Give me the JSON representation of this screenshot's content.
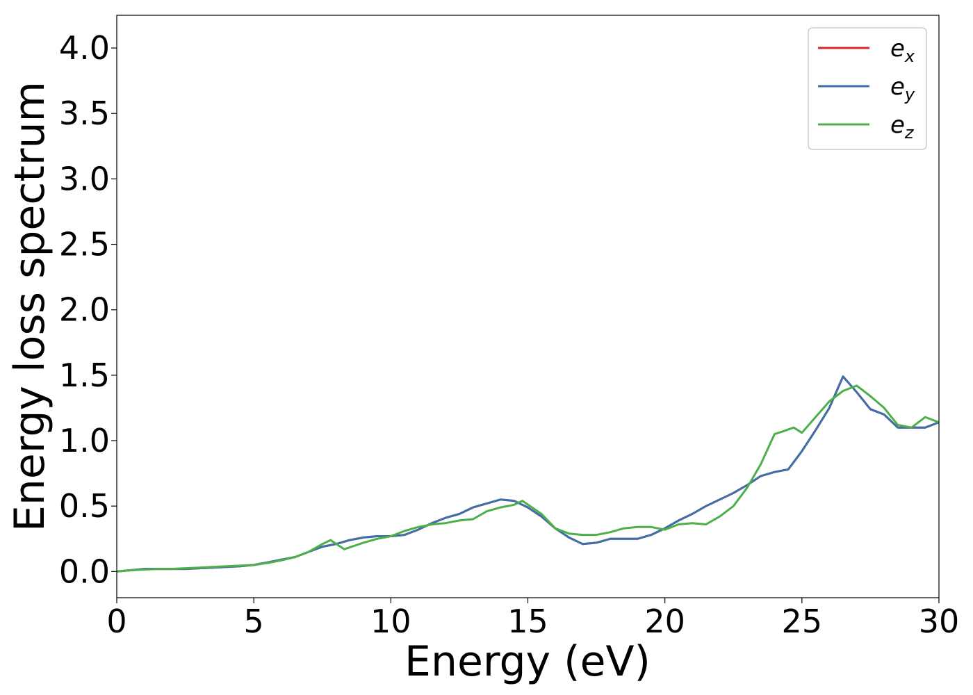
{
  "chart_data": {
    "type": "line",
    "title": "",
    "xlabel": "Energy (eV)",
    "ylabel": "Energy loss spectrum",
    "xlim": [
      0,
      30
    ],
    "ylim": [
      -0.2,
      4.25
    ],
    "xticks": [
      "0",
      "5",
      "10",
      "15",
      "20",
      "25",
      "30"
    ],
    "yticks": [
      "0.0",
      "0.5",
      "1.0",
      "1.5",
      "2.0",
      "2.5",
      "3.0",
      "3.5",
      "4.0"
    ],
    "grid": false,
    "legend_position": "top-right",
    "series": [
      {
        "name": "e",
        "subscript": "x",
        "color": "#d62728",
        "x": [
          0,
          0.5,
          1,
          1.5,
          2,
          2.5,
          3,
          3.5,
          4,
          4.5,
          5,
          5.5,
          6,
          6.5,
          7,
          7.5,
          8,
          8.5,
          9,
          9.5,
          10,
          10.5,
          11,
          11.5,
          12,
          12.5,
          13,
          13.5,
          14,
          14.5,
          15,
          15.5,
          16,
          16.5,
          17,
          17.5,
          18,
          18.5,
          19,
          19.5,
          20,
          20.5,
          21,
          21.5,
          22,
          22.5,
          23,
          23.5,
          24,
          24.5,
          25,
          25.5,
          26,
          26.5,
          27,
          27.5,
          28,
          28.5,
          29,
          29.5,
          30
        ],
        "y": [
          0.0,
          0.01,
          0.02,
          0.02,
          0.02,
          0.02,
          0.025,
          0.03,
          0.035,
          0.04,
          0.05,
          0.07,
          0.09,
          0.11,
          0.15,
          0.19,
          0.21,
          0.24,
          0.26,
          0.27,
          0.27,
          0.28,
          0.32,
          0.37,
          0.41,
          0.44,
          0.49,
          0.52,
          0.55,
          0.54,
          0.49,
          0.42,
          0.33,
          0.26,
          0.21,
          0.22,
          0.25,
          0.25,
          0.25,
          0.28,
          0.33,
          0.39,
          0.44,
          0.5,
          0.55,
          0.6,
          0.66,
          0.73,
          0.76,
          0.78,
          0.92,
          1.08,
          1.25,
          1.49,
          1.37,
          1.24,
          1.2,
          1.1,
          1.1,
          1.1,
          1.14
        ]
      },
      {
        "name": "e",
        "subscript": "y",
        "color": "#3d6fa8",
        "x": [
          0,
          0.5,
          1,
          1.5,
          2,
          2.5,
          3,
          3.5,
          4,
          4.5,
          5,
          5.5,
          6,
          6.5,
          7,
          7.5,
          8,
          8.5,
          9,
          9.5,
          10,
          10.5,
          11,
          11.5,
          12,
          12.5,
          13,
          13.5,
          14,
          14.5,
          15,
          15.5,
          16,
          16.5,
          17,
          17.5,
          18,
          18.5,
          19,
          19.5,
          20,
          20.5,
          21,
          21.5,
          22,
          22.5,
          23,
          23.5,
          24,
          24.5,
          25,
          25.5,
          26,
          26.5,
          27,
          27.5,
          28,
          28.5,
          29,
          29.5,
          30
        ],
        "y": [
          0.0,
          0.01,
          0.02,
          0.02,
          0.02,
          0.02,
          0.025,
          0.03,
          0.035,
          0.04,
          0.05,
          0.07,
          0.09,
          0.11,
          0.15,
          0.19,
          0.21,
          0.24,
          0.26,
          0.27,
          0.27,
          0.28,
          0.32,
          0.37,
          0.41,
          0.44,
          0.49,
          0.52,
          0.55,
          0.54,
          0.49,
          0.42,
          0.33,
          0.26,
          0.21,
          0.22,
          0.25,
          0.25,
          0.25,
          0.28,
          0.33,
          0.39,
          0.44,
          0.5,
          0.55,
          0.6,
          0.66,
          0.73,
          0.76,
          0.78,
          0.92,
          1.08,
          1.25,
          1.49,
          1.37,
          1.24,
          1.2,
          1.1,
          1.1,
          1.1,
          1.14
        ]
      },
      {
        "name": "e",
        "subscript": "z",
        "color": "#4daf4a",
        "x": [
          0,
          0.5,
          1,
          1.5,
          2,
          2.5,
          3,
          3.5,
          4,
          4.5,
          5,
          5.5,
          6,
          6.5,
          7,
          7.5,
          7.8,
          8.3,
          9,
          9.5,
          10,
          10.5,
          11,
          11.5,
          12,
          12.5,
          13,
          13.5,
          14,
          14.5,
          14.8,
          15.5,
          16,
          16.5,
          17,
          17.5,
          18,
          18.5,
          19,
          19.5,
          20,
          20.5,
          21,
          21.5,
          22,
          22.5,
          23,
          23.5,
          24,
          24.3,
          24.7,
          25,
          25.5,
          26,
          26.5,
          27,
          27.5,
          28,
          28.5,
          29,
          29.5,
          30
        ],
        "y": [
          0.0,
          0.01,
          0.015,
          0.02,
          0.02,
          0.025,
          0.03,
          0.035,
          0.04,
          0.045,
          0.05,
          0.065,
          0.085,
          0.11,
          0.15,
          0.21,
          0.24,
          0.17,
          0.22,
          0.25,
          0.27,
          0.31,
          0.34,
          0.36,
          0.37,
          0.39,
          0.4,
          0.46,
          0.49,
          0.51,
          0.54,
          0.44,
          0.33,
          0.29,
          0.28,
          0.28,
          0.3,
          0.33,
          0.34,
          0.34,
          0.32,
          0.36,
          0.37,
          0.36,
          0.42,
          0.5,
          0.64,
          0.82,
          1.05,
          1.07,
          1.1,
          1.06,
          1.18,
          1.3,
          1.38,
          1.42,
          1.34,
          1.25,
          1.12,
          1.1,
          1.18,
          1.14
        ]
      }
    ]
  }
}
